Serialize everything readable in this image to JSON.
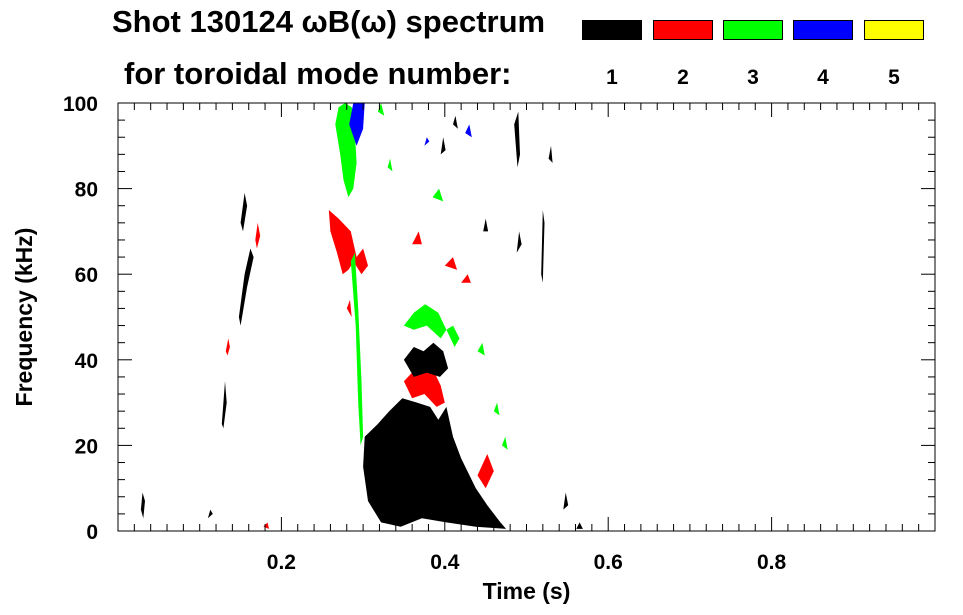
{
  "header": {
    "title_line1": "Shot 130124 ωB(ω) spectrum",
    "title_line2": "for toroidal mode number:"
  },
  "legend": [
    {
      "label": "1",
      "color": "#000000"
    },
    {
      "label": "2",
      "color": "#ff0000"
    },
    {
      "label": "3",
      "color": "#00ff00"
    },
    {
      "label": "4",
      "color": "#0000ff"
    },
    {
      "label": "5",
      "color": "#ffff00"
    }
  ],
  "chart_data": {
    "type": "heatmap",
    "title": "Shot 130124 ωB(ω) spectrum for toroidal mode number",
    "xlabel": "Time (s)",
    "ylabel": "Frequency (kHz)",
    "xlim": [
      0.0,
      1.0
    ],
    "ylim": [
      0,
      100
    ],
    "xticks": [
      0.2,
      0.4,
      0.6,
      0.8
    ],
    "xtick_labels": [
      "0.2",
      "0.4",
      "0.6",
      "0.8"
    ],
    "yticks": [
      0,
      20,
      40,
      60,
      80,
      100
    ],
    "ytick_labels": [
      "0",
      "20",
      "40",
      "60",
      "80",
      "100"
    ],
    "regions": [
      {
        "mode": 1,
        "points": [
          [
            0.148,
            50
          ],
          [
            0.155,
            60
          ],
          [
            0.162,
            66
          ],
          [
            0.166,
            64
          ],
          [
            0.158,
            57
          ],
          [
            0.15,
            48
          ]
        ]
      },
      {
        "mode": 1,
        "points": [
          [
            0.127,
            25
          ],
          [
            0.131,
            35
          ],
          [
            0.133,
            30
          ],
          [
            0.129,
            24
          ]
        ]
      },
      {
        "mode": 1,
        "points": [
          [
            0.15,
            72
          ],
          [
            0.155,
            79
          ],
          [
            0.158,
            76
          ],
          [
            0.153,
            70
          ]
        ]
      },
      {
        "mode": 2,
        "points": [
          [
            0.168,
            68
          ],
          [
            0.171,
            72
          ],
          [
            0.174,
            69
          ],
          [
            0.17,
            66
          ]
        ]
      },
      {
        "mode": 2,
        "points": [
          [
            0.132,
            42
          ],
          [
            0.135,
            45
          ],
          [
            0.137,
            43
          ],
          [
            0.134,
            41
          ]
        ]
      },
      {
        "mode": 1,
        "points": [
          [
            0.028,
            5
          ],
          [
            0.03,
            9
          ],
          [
            0.033,
            7
          ],
          [
            0.031,
            3
          ]
        ]
      },
      {
        "mode": 1,
        "points": [
          [
            0.11,
            3
          ],
          [
            0.113,
            5
          ],
          [
            0.116,
            4
          ]
        ]
      },
      {
        "mode": 2,
        "points": [
          [
            0.178,
            1
          ],
          [
            0.183,
            2
          ],
          [
            0.185,
            0.5
          ]
        ]
      },
      {
        "mode": 2,
        "points": [
          [
            0.258,
            75
          ],
          [
            0.27,
            73
          ],
          [
            0.285,
            70
          ],
          [
            0.292,
            64
          ],
          [
            0.282,
            61
          ],
          [
            0.275,
            60
          ],
          [
            0.268,
            65
          ],
          [
            0.26,
            70
          ]
        ]
      },
      {
        "mode": 2,
        "points": [
          [
            0.288,
            63
          ],
          [
            0.3,
            66
          ],
          [
            0.306,
            62
          ],
          [
            0.298,
            60
          ]
        ]
      },
      {
        "mode": 3,
        "points": [
          [
            0.266,
            95
          ],
          [
            0.272,
            88
          ],
          [
            0.276,
            82
          ],
          [
            0.282,
            78
          ],
          [
            0.288,
            80
          ],
          [
            0.292,
            86
          ],
          [
            0.29,
            93
          ],
          [
            0.286,
            99
          ],
          [
            0.278,
            100
          ],
          [
            0.27,
            99
          ]
        ]
      },
      {
        "mode": 3,
        "points": [
          [
            0.285,
            63
          ],
          [
            0.291,
            48
          ],
          [
            0.294,
            30
          ],
          [
            0.297,
            20
          ],
          [
            0.3,
            22
          ],
          [
            0.298,
            35
          ],
          [
            0.294,
            52
          ],
          [
            0.29,
            65
          ]
        ]
      },
      {
        "mode": 4,
        "points": [
          [
            0.283,
            95
          ],
          [
            0.288,
            100
          ],
          [
            0.302,
            100
          ],
          [
            0.3,
            94
          ],
          [
            0.292,
            90
          ]
        ]
      },
      {
        "mode": 4,
        "points": [
          [
            0.375,
            90
          ],
          [
            0.378,
            92
          ],
          [
            0.381,
            91
          ]
        ]
      },
      {
        "mode": 4,
        "points": [
          [
            0.425,
            93
          ],
          [
            0.43,
            95
          ],
          [
            0.433,
            92
          ]
        ]
      },
      {
        "mode": 3,
        "points": [
          [
            0.318,
            98
          ],
          [
            0.322,
            100
          ],
          [
            0.326,
            97
          ]
        ]
      },
      {
        "mode": 3,
        "points": [
          [
            0.33,
            85
          ],
          [
            0.333,
            87
          ],
          [
            0.336,
            84
          ]
        ]
      },
      {
        "mode": 3,
        "points": [
          [
            0.385,
            78
          ],
          [
            0.393,
            80
          ],
          [
            0.398,
            77
          ]
        ]
      },
      {
        "mode": 3,
        "points": [
          [
            0.35,
            48
          ],
          [
            0.362,
            51
          ],
          [
            0.376,
            53
          ],
          [
            0.392,
            51
          ],
          [
            0.402,
            47
          ],
          [
            0.395,
            45
          ],
          [
            0.378,
            48
          ],
          [
            0.362,
            47
          ]
        ]
      },
      {
        "mode": 3,
        "points": [
          [
            0.402,
            47
          ],
          [
            0.412,
            43
          ],
          [
            0.418,
            45
          ],
          [
            0.41,
            48
          ]
        ]
      },
      {
        "mode": 3,
        "points": [
          [
            0.44,
            42
          ],
          [
            0.446,
            44
          ],
          [
            0.449,
            41
          ]
        ]
      },
      {
        "mode": 3,
        "points": [
          [
            0.47,
            20
          ],
          [
            0.474,
            22
          ],
          [
            0.477,
            19
          ]
        ]
      },
      {
        "mode": 2,
        "points": [
          [
            0.35,
            35
          ],
          [
            0.36,
            37
          ],
          [
            0.372,
            39
          ],
          [
            0.385,
            38
          ],
          [
            0.395,
            34
          ],
          [
            0.4,
            30
          ],
          [
            0.39,
            29
          ],
          [
            0.375,
            32
          ],
          [
            0.36,
            31
          ]
        ]
      },
      {
        "mode": 2,
        "points": [
          [
            0.36,
            67
          ],
          [
            0.368,
            70
          ],
          [
            0.372,
            67
          ]
        ]
      },
      {
        "mode": 2,
        "points": [
          [
            0.4,
            62
          ],
          [
            0.41,
            64
          ],
          [
            0.415,
            61
          ]
        ]
      },
      {
        "mode": 2,
        "points": [
          [
            0.42,
            58
          ],
          [
            0.428,
            60
          ],
          [
            0.432,
            58
          ]
        ]
      },
      {
        "mode": 2,
        "points": [
          [
            0.32,
            8
          ],
          [
            0.326,
            12
          ],
          [
            0.33,
            9
          ],
          [
            0.324,
            5
          ]
        ]
      },
      {
        "mode": 2,
        "points": [
          [
            0.44,
            13
          ],
          [
            0.452,
            18
          ],
          [
            0.46,
            14
          ],
          [
            0.45,
            10
          ]
        ]
      },
      {
        "mode": 2,
        "points": [
          [
            0.28,
            52
          ],
          [
            0.284,
            54
          ],
          [
            0.286,
            50
          ]
        ]
      },
      {
        "mode": 1,
        "points": [
          [
            0.302,
            22
          ],
          [
            0.318,
            25
          ],
          [
            0.332,
            28
          ],
          [
            0.348,
            31
          ],
          [
            0.366,
            30
          ],
          [
            0.382,
            29
          ],
          [
            0.392,
            26
          ],
          [
            0.402,
            29
          ],
          [
            0.41,
            22
          ],
          [
            0.42,
            17
          ],
          [
            0.438,
            10
          ],
          [
            0.452,
            6
          ],
          [
            0.468,
            2
          ],
          [
            0.475,
            0.5
          ],
          [
            0.438,
            1
          ],
          [
            0.402,
            2
          ],
          [
            0.372,
            3
          ],
          [
            0.346,
            1
          ],
          [
            0.322,
            2
          ],
          [
            0.306,
            7
          ],
          [
            0.3,
            15
          ]
        ]
      },
      {
        "mode": 1,
        "points": [
          [
            0.35,
            40
          ],
          [
            0.362,
            43
          ],
          [
            0.374,
            42
          ],
          [
            0.386,
            44
          ],
          [
            0.398,
            42
          ],
          [
            0.404,
            38
          ],
          [
            0.394,
            36
          ],
          [
            0.378,
            37
          ],
          [
            0.362,
            36
          ]
        ]
      },
      {
        "mode": 1,
        "points": [
          [
            0.322,
            8
          ],
          [
            0.326,
            18
          ],
          [
            0.33,
            14
          ]
        ]
      },
      {
        "mode": 1,
        "points": [
          [
            0.395,
            88
          ],
          [
            0.398,
            92
          ],
          [
            0.401,
            89
          ]
        ]
      },
      {
        "mode": 1,
        "points": [
          [
            0.41,
            95
          ],
          [
            0.413,
            97
          ],
          [
            0.416,
            94
          ]
        ]
      },
      {
        "mode": 1,
        "points": [
          [
            0.447,
            70
          ],
          [
            0.45,
            73
          ],
          [
            0.453,
            70
          ]
        ]
      },
      {
        "mode": 1,
        "points": [
          [
            0.485,
            95
          ],
          [
            0.489,
            85
          ],
          [
            0.492,
            88
          ],
          [
            0.49,
            98
          ]
        ]
      },
      {
        "mode": 1,
        "points": [
          [
            0.488,
            65
          ],
          [
            0.491,
            70
          ],
          [
            0.494,
            67
          ]
        ]
      },
      {
        "mode": 1,
        "points": [
          [
            0.518,
            60
          ],
          [
            0.52,
            75
          ],
          [
            0.522,
            72
          ],
          [
            0.52,
            58
          ]
        ]
      },
      {
        "mode": 1,
        "points": [
          [
            0.527,
            87
          ],
          [
            0.53,
            90
          ],
          [
            0.532,
            86
          ]
        ]
      },
      {
        "mode": 1,
        "points": [
          [
            0.545,
            5
          ],
          [
            0.548,
            9
          ],
          [
            0.551,
            6
          ]
        ]
      },
      {
        "mode": 1,
        "points": [
          [
            0.561,
            0.5
          ],
          [
            0.565,
            2
          ],
          [
            0.569,
            0.5
          ]
        ]
      },
      {
        "mode": 3,
        "points": [
          [
            0.46,
            28
          ],
          [
            0.464,
            30
          ],
          [
            0.467,
            27
          ]
        ]
      }
    ]
  }
}
